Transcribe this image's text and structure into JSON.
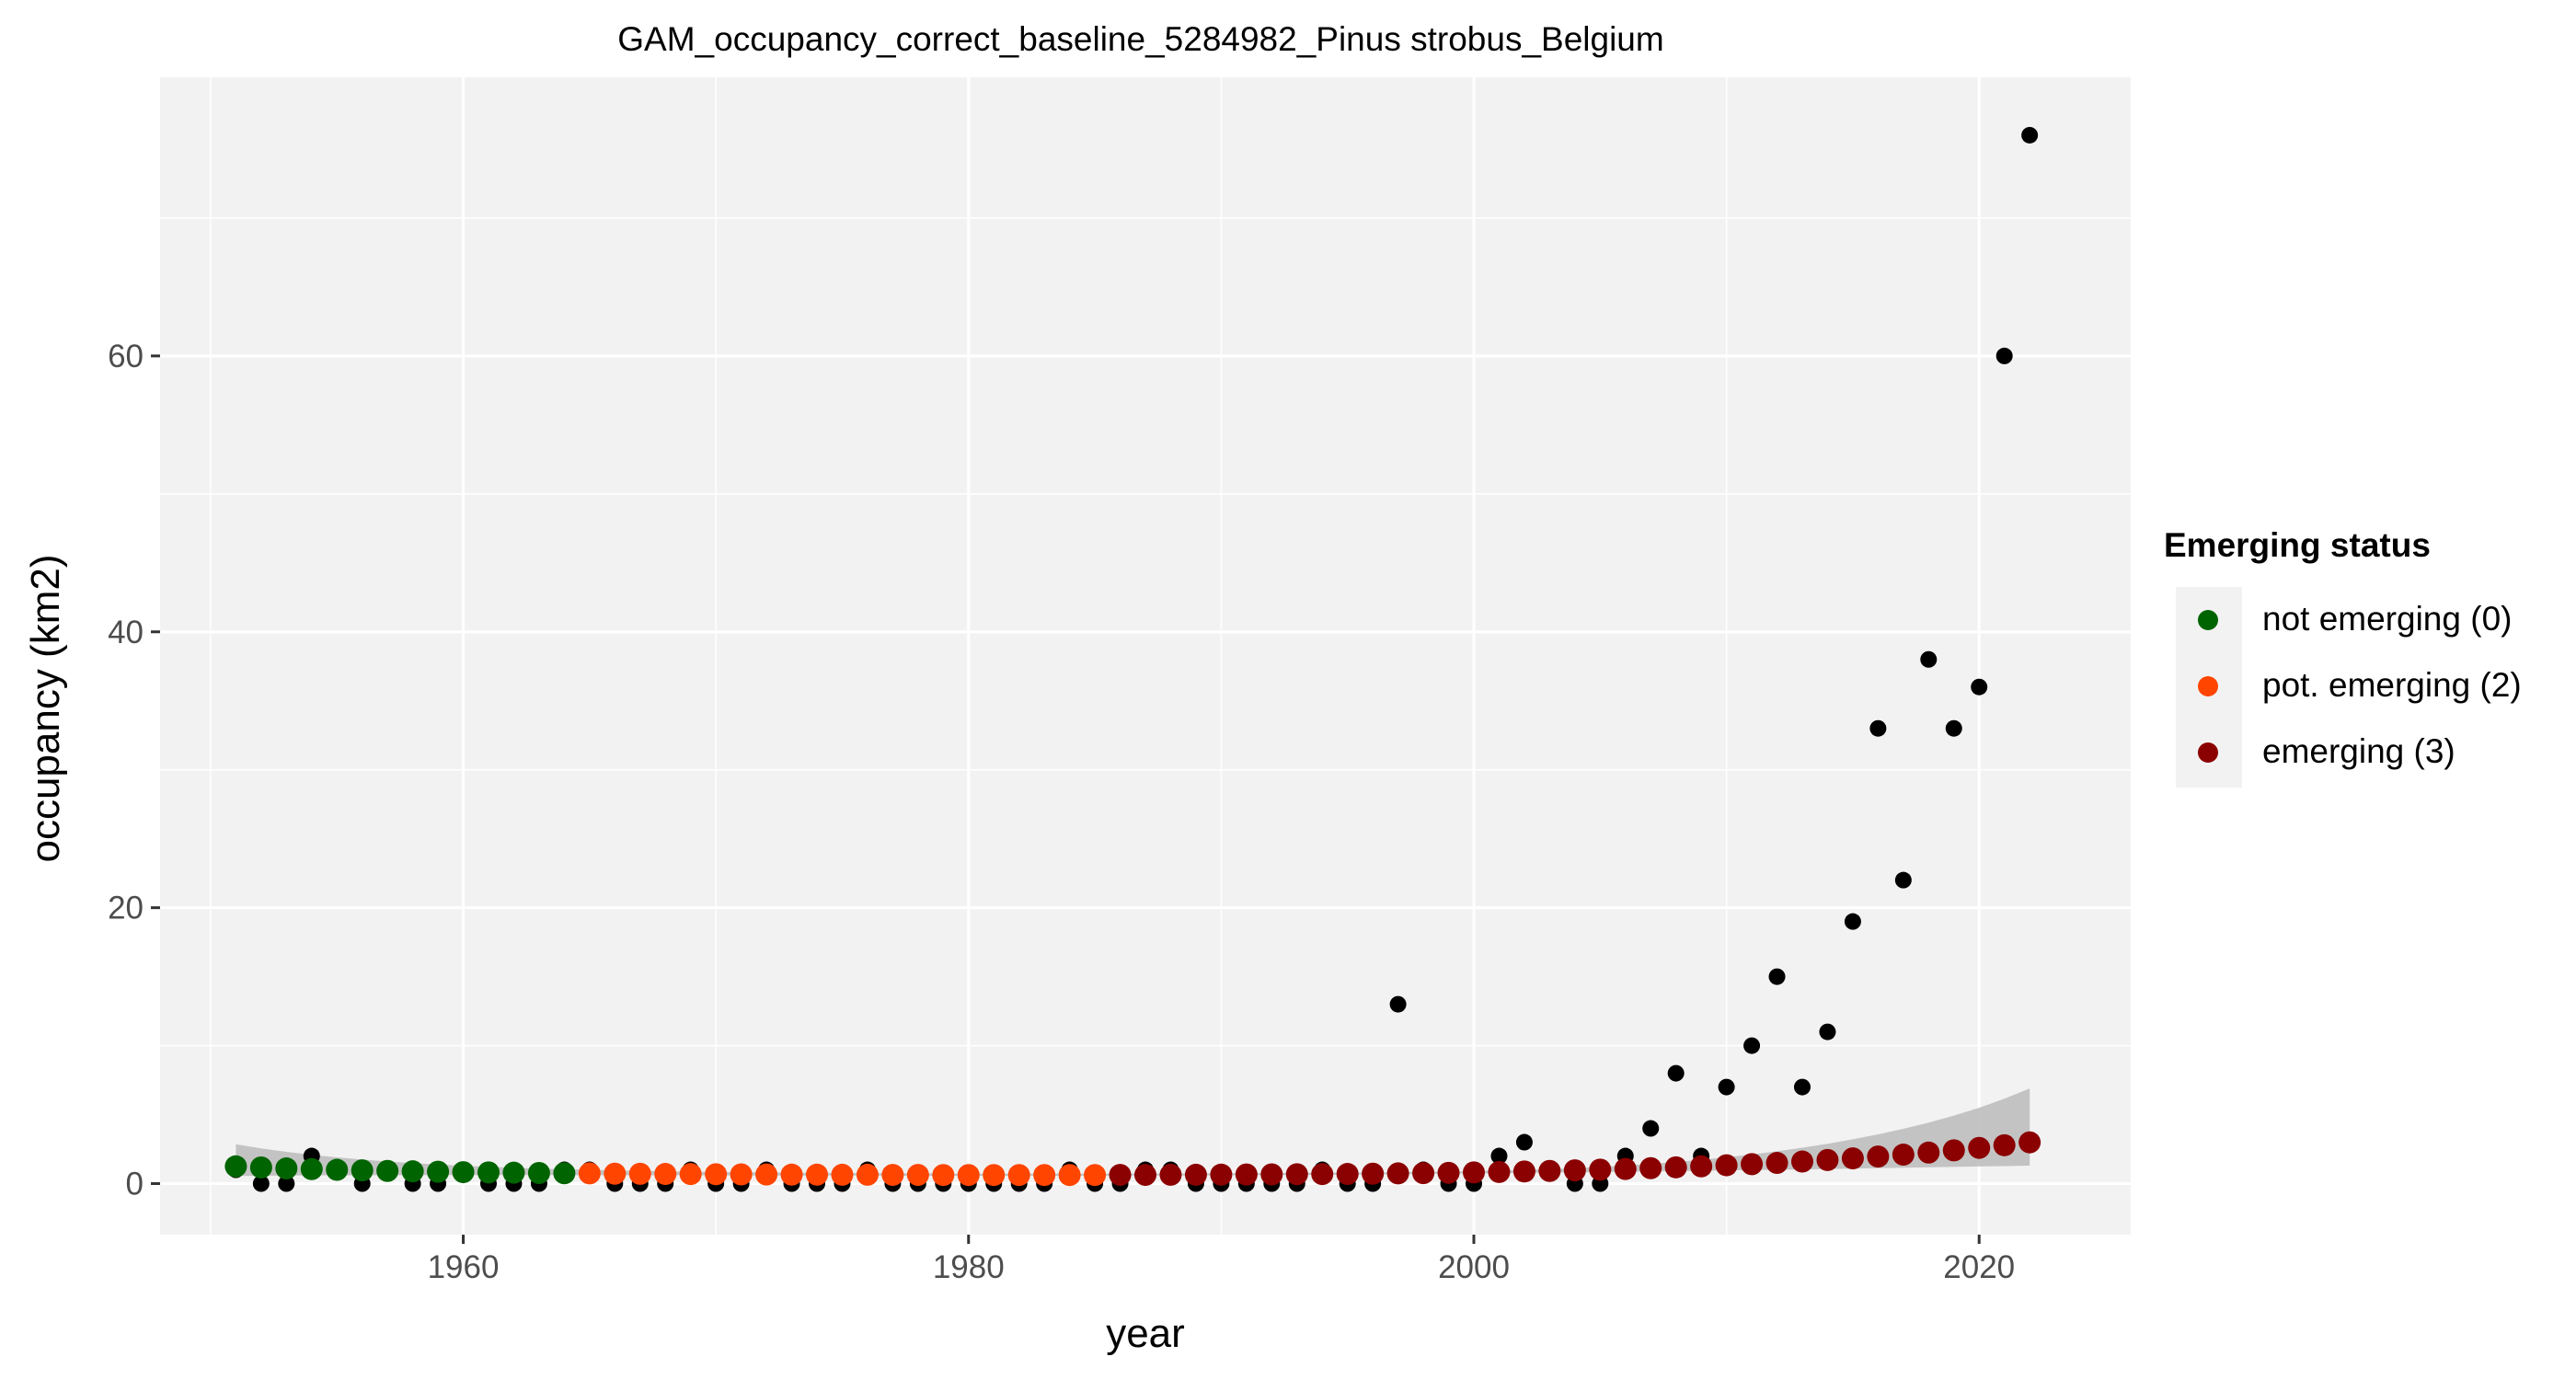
{
  "chart_data": {
    "type": "scatter",
    "title": "GAM_occupancy_correct_baseline_5284982_Pinus strobus_Belgium",
    "xlabel": "year",
    "ylabel": "occupancy (km2)",
    "xlim": [
      1948,
      2026
    ],
    "ylim": [
      -3.7,
      80.2
    ],
    "xticks": [
      1960,
      1980,
      2000,
      2020
    ],
    "yticks": [
      0,
      20,
      40,
      60
    ],
    "grid": true,
    "legend": {
      "title": "Emerging status",
      "position": "right",
      "entries": [
        {
          "label": "not emerging (0)",
          "color": "#006400"
        },
        {
          "label": "pot. emerging (2)",
          "color": "#ff4500"
        },
        {
          "label": "emerging (3)",
          "color": "#8b0000"
        }
      ]
    },
    "observed": {
      "color": "#000000",
      "points": [
        [
          1951,
          1
        ],
        [
          1952,
          0
        ],
        [
          1953,
          0
        ],
        [
          1954,
          2
        ],
        [
          1955,
          1
        ],
        [
          1956,
          0
        ],
        [
          1957,
          1
        ],
        [
          1958,
          0
        ],
        [
          1959,
          0
        ],
        [
          1960,
          1
        ],
        [
          1961,
          0
        ],
        [
          1962,
          0
        ],
        [
          1963,
          0
        ],
        [
          1964,
          1
        ],
        [
          1965,
          1
        ],
        [
          1966,
          0
        ],
        [
          1967,
          0
        ],
        [
          1968,
          0
        ],
        [
          1969,
          1
        ],
        [
          1970,
          0
        ],
        [
          1971,
          0
        ],
        [
          1972,
          1
        ],
        [
          1973,
          0
        ],
        [
          1974,
          0
        ],
        [
          1975,
          0
        ],
        [
          1976,
          1
        ],
        [
          1977,
          0
        ],
        [
          1978,
          0
        ],
        [
          1979,
          0
        ],
        [
          1980,
          0
        ],
        [
          1981,
          0
        ],
        [
          1982,
          0
        ],
        [
          1983,
          0
        ],
        [
          1984,
          1
        ],
        [
          1985,
          0
        ],
        [
          1986,
          0
        ],
        [
          1987,
          1
        ],
        [
          1988,
          1
        ],
        [
          1989,
          0
        ],
        [
          1990,
          0
        ],
        [
          1991,
          0
        ],
        [
          1992,
          0
        ],
        [
          1993,
          0
        ],
        [
          1994,
          1
        ],
        [
          1995,
          0
        ],
        [
          1996,
          0
        ],
        [
          1997,
          13
        ],
        [
          1998,
          1
        ],
        [
          1999,
          0
        ],
        [
          2000,
          0
        ],
        [
          2001,
          2
        ],
        [
          2002,
          3
        ],
        [
          2003,
          1
        ],
        [
          2004,
          0
        ],
        [
          2005,
          0
        ],
        [
          2006,
          2
        ],
        [
          2007,
          4
        ],
        [
          2008,
          8
        ],
        [
          2009,
          2
        ],
        [
          2010,
          7
        ],
        [
          2011,
          10
        ],
        [
          2012,
          15
        ],
        [
          2013,
          7
        ],
        [
          2014,
          11
        ],
        [
          2015,
          19
        ],
        [
          2016,
          33
        ],
        [
          2017,
          22
        ],
        [
          2018,
          38
        ],
        [
          2019,
          33
        ],
        [
          2020,
          36
        ],
        [
          2021,
          60
        ],
        [
          2022,
          76
        ]
      ]
    },
    "fitted": {
      "years": [
        1951,
        1952,
        1953,
        1954,
        1955,
        1956,
        1957,
        1958,
        1959,
        1960,
        1961,
        1962,
        1963,
        1964,
        1965,
        1966,
        1967,
        1968,
        1969,
        1970,
        1971,
        1972,
        1973,
        1974,
        1975,
        1976,
        1977,
        1978,
        1979,
        1980,
        1981,
        1982,
        1983,
        1984,
        1985,
        1986,
        1987,
        1988,
        1989,
        1990,
        1991,
        1992,
        1993,
        1994,
        1995,
        1996,
        1997,
        1998,
        1999,
        2000,
        2001,
        2002,
        2003,
        2004,
        2005,
        2006,
        2007,
        2008,
        2009,
        2010,
        2011,
        2012,
        2013,
        2014,
        2015,
        2016,
        2017,
        2018,
        2019,
        2020,
        2021,
        2022
      ],
      "values": [
        1.25,
        1.17,
        1.1,
        1.05,
        1.0,
        0.96,
        0.92,
        0.89,
        0.86,
        0.83,
        0.81,
        0.79,
        0.77,
        0.75,
        0.74,
        0.72,
        0.71,
        0.7,
        0.69,
        0.68,
        0.67,
        0.66,
        0.65,
        0.65,
        0.64,
        0.64,
        0.63,
        0.63,
        0.62,
        0.62,
        0.62,
        0.62,
        0.62,
        0.62,
        0.62,
        0.63,
        0.63,
        0.64,
        0.64,
        0.65,
        0.66,
        0.67,
        0.68,
        0.69,
        0.7,
        0.72,
        0.74,
        0.76,
        0.78,
        0.81,
        0.84,
        0.88,
        0.92,
        0.96,
        1.01,
        1.06,
        1.12,
        1.18,
        1.25,
        1.33,
        1.41,
        1.5,
        1.6,
        1.71,
        1.83,
        1.96,
        2.1,
        2.25,
        2.41,
        2.59,
        2.78,
        2.99
      ],
      "status": [
        0,
        0,
        0,
        0,
        0,
        0,
        0,
        0,
        0,
        0,
        0,
        0,
        0,
        0,
        2,
        2,
        2,
        2,
        2,
        2,
        2,
        2,
        2,
        2,
        2,
        2,
        2,
        2,
        2,
        2,
        2,
        2,
        2,
        2,
        2,
        3,
        3,
        3,
        3,
        3,
        3,
        3,
        3,
        3,
        3,
        3,
        3,
        3,
        3,
        3,
        3,
        3,
        3,
        3,
        3,
        3,
        3,
        3,
        3,
        3,
        3,
        3,
        3,
        3,
        3,
        3,
        3,
        3,
        3,
        3,
        3,
        3
      ],
      "ci_lower": [
        0.55,
        0.57,
        0.58,
        0.6,
        0.6,
        0.61,
        0.61,
        0.62,
        0.62,
        0.62,
        0.62,
        0.62,
        0.62,
        0.62,
        0.61,
        0.61,
        0.61,
        0.6,
        0.6,
        0.6,
        0.59,
        0.59,
        0.59,
        0.58,
        0.58,
        0.58,
        0.57,
        0.57,
        0.57,
        0.57,
        0.57,
        0.57,
        0.57,
        0.57,
        0.57,
        0.58,
        0.58,
        0.59,
        0.59,
        0.6,
        0.61,
        0.62,
        0.63,
        0.64,
        0.65,
        0.67,
        0.68,
        0.7,
        0.72,
        0.74,
        0.76,
        0.78,
        0.8,
        0.82,
        0.84,
        0.86,
        0.88,
        0.9,
        0.93,
        0.95,
        0.98,
        1.0,
        1.03,
        1.06,
        1.09,
        1.12,
        1.15,
        1.18,
        1.21,
        1.24,
        1.27,
        1.3
      ],
      "ci_upper": [
        2.85,
        2.55,
        2.3,
        2.08,
        1.9,
        1.74,
        1.6,
        1.48,
        1.38,
        1.29,
        1.22,
        1.15,
        1.09,
        1.04,
        1.0,
        0.96,
        0.93,
        0.9,
        0.87,
        0.85,
        0.83,
        0.81,
        0.79,
        0.78,
        0.77,
        0.76,
        0.75,
        0.74,
        0.73,
        0.72,
        0.72,
        0.72,
        0.72,
        0.72,
        0.72,
        0.72,
        0.72,
        0.73,
        0.73,
        0.74,
        0.75,
        0.76,
        0.77,
        0.78,
        0.79,
        0.8,
        0.82,
        0.84,
        0.87,
        0.9,
        0.94,
        0.99,
        1.05,
        1.12,
        1.21,
        1.31,
        1.43,
        1.57,
        1.73,
        1.91,
        2.11,
        2.34,
        2.6,
        2.89,
        3.21,
        3.57,
        3.97,
        4.42,
        4.93,
        5.5,
        6.15,
        6.9
      ]
    }
  }
}
